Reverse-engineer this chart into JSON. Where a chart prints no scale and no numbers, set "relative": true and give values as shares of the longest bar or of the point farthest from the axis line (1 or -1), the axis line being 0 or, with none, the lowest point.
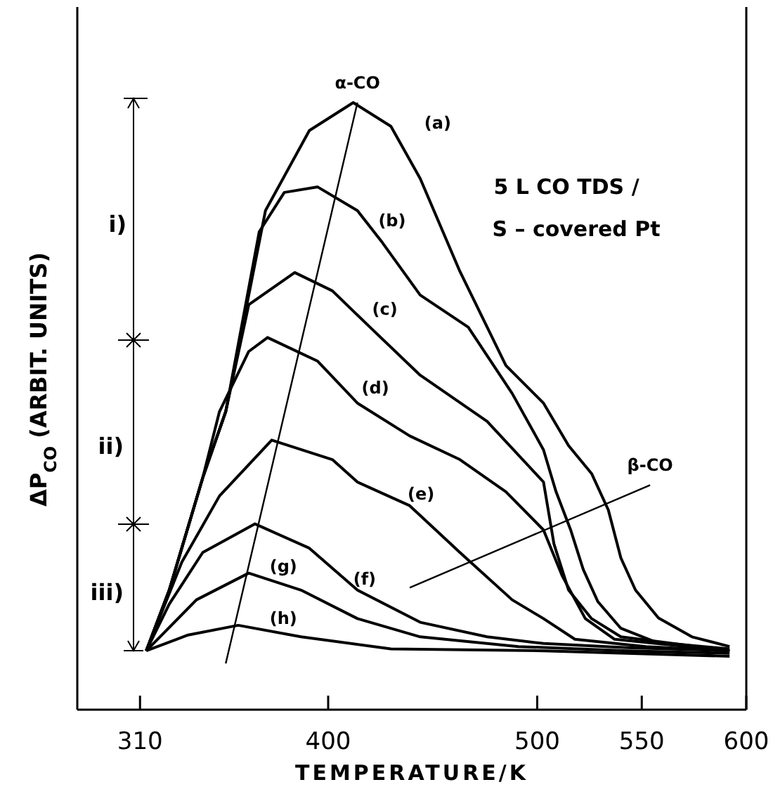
{
  "chart_data": {
    "type": "line",
    "relative": true,
    "xlabel": "TEMPERATURE/K",
    "ylabel": "ΔP$_{CO}$ (ARBIT. UNITS)",
    "xlim": [
      280,
      600
    ],
    "xticks": [
      310,
      400,
      500,
      550,
      600
    ],
    "annotations": [
      "5 L CO TDS /",
      "S – covered Pt",
      "i)",
      "ii)",
      "iii)"
    ],
    "series": [
      {
        "name": "(a)",
        "color": "#000000",
        "x": [
          313,
          324,
          340,
          351,
          370,
          391,
          412,
          430,
          444,
          463,
          485,
          503,
          515,
          526,
          534,
          540,
          547,
          558,
          574,
          592
        ],
        "values": [
          0.097,
          0.197,
          0.382,
          0.491,
          0.822,
          0.954,
          1,
          0.961,
          0.875,
          0.722,
          0.567,
          0.505,
          0.435,
          0.389,
          0.329,
          0.25,
          0.197,
          0.151,
          0.12,
          0.104
        ]
      },
      {
        "name": "(b)",
        "color": "#000000",
        "x": [
          313,
          324,
          340,
          351,
          367,
          379,
          395,
          414,
          426,
          444,
          467,
          488,
          503,
          509,
          516,
          522,
          529,
          540,
          557,
          592
        ],
        "values": [
          0.097,
          0.197,
          0.382,
          0.491,
          0.787,
          0.852,
          0.861,
          0.822,
          0.769,
          0.683,
          0.63,
          0.521,
          0.428,
          0.359,
          0.296,
          0.231,
          0.178,
          0.134,
          0.111,
          0.1
        ]
      },
      {
        "name": "(c)",
        "color": "#000000",
        "x": [
          313,
          324,
          340,
          351,
          362,
          384,
          402,
          420,
          444,
          476,
          503,
          508,
          515,
          526,
          540,
          592
        ],
        "values": [
          0.097,
          0.197,
          0.382,
          0.491,
          0.667,
          0.72,
          0.69,
          0.63,
          0.551,
          0.475,
          0.375,
          0.273,
          0.197,
          0.15,
          0.12,
          0.097
        ]
      },
      {
        "name": "(d)",
        "color": "#000000",
        "x": [
          313,
          324,
          340,
          348,
          362,
          371,
          395,
          414,
          439,
          463,
          485,
          503,
          512,
          523,
          537,
          592
        ],
        "values": [
          0.097,
          0.197,
          0.382,
          0.491,
          0.59,
          0.613,
          0.574,
          0.505,
          0.451,
          0.412,
          0.359,
          0.296,
          0.22,
          0.15,
          0.116,
          0.097
        ]
      },
      {
        "name": "(e)",
        "color": "#000000",
        "x": [
          313,
          330,
          348,
          373,
          402,
          414,
          439,
          463,
          488,
          503,
          518,
          552,
          592
        ],
        "values": [
          0.097,
          0.243,
          0.352,
          0.444,
          0.412,
          0.375,
          0.336,
          0.259,
          0.181,
          0.15,
          0.116,
          0.104,
          0.097
        ]
      },
      {
        "name": "(f)",
        "color": "#000000",
        "x": [
          313,
          324,
          340,
          365,
          391,
          414,
          444,
          476,
          503,
          543,
          592
        ],
        "values": [
          0.097,
          0.174,
          0.259,
          0.306,
          0.266,
          0.197,
          0.144,
          0.12,
          0.109,
          0.102,
          0.097
        ]
      },
      {
        "name": "(g)",
        "color": "#000000",
        "x": [
          313,
          337,
          362,
          387,
          414,
          444,
          491,
          543,
          592
        ],
        "values": [
          0.097,
          0.181,
          0.225,
          0.197,
          0.15,
          0.12,
          0.104,
          0.097,
          0.093
        ]
      },
      {
        "name": "(h)",
        "color": "#000000",
        "x": [
          313,
          333,
          357,
          387,
          430,
          503,
          592
        ],
        "values": [
          0.097,
          0.123,
          0.139,
          0.12,
          0.1,
          0.097,
          0.088
        ]
      },
      {
        "name": "α-CO",
        "color": "#000000",
        "x": [
          351,
          414
        ],
        "values": [
          0.076,
          1
        ]
      },
      {
        "name": "β-CO",
        "color": "#000000",
        "x": [
          439,
          554
        ],
        "values": [
          0.201,
          0.37
        ]
      }
    ]
  }
}
